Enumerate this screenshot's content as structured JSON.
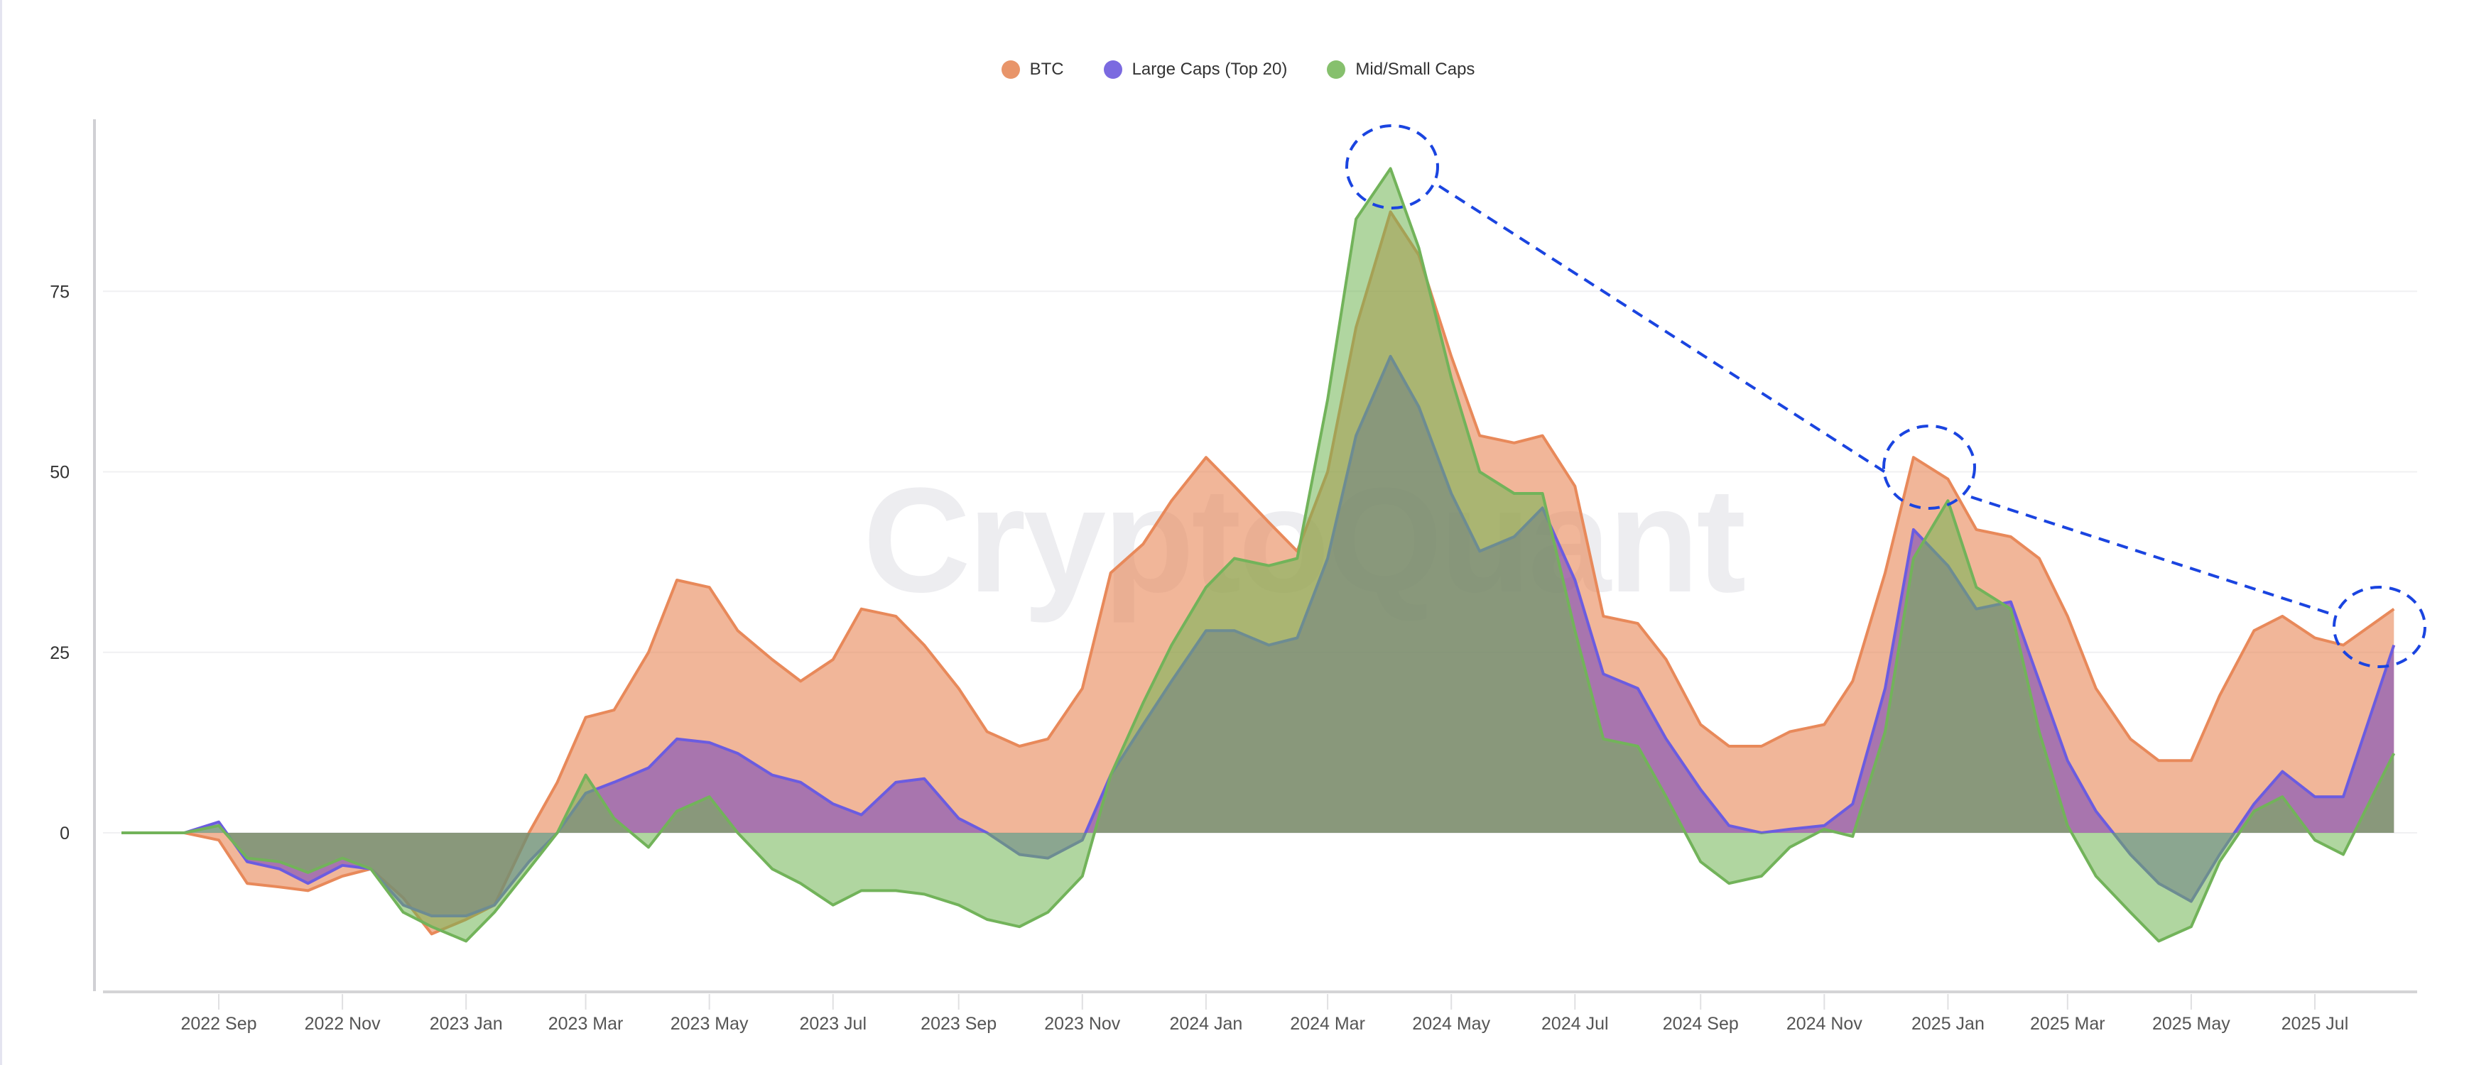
{
  "chart_data": {
    "type": "area",
    "title": "",
    "xlabel": "",
    "ylabel": "",
    "ylim": [
      -22,
      97
    ],
    "yticks": [
      0,
      25,
      50,
      75
    ],
    "grid": true,
    "legend_position": "top-center",
    "watermark": "CryptoQuant",
    "xticks": [
      {
        "date": "2022-09-01",
        "label": "2022 Sep"
      },
      {
        "date": "2022-11-01",
        "label": "2022 Nov"
      },
      {
        "date": "2023-01-01",
        "label": "2023 Jan"
      },
      {
        "date": "2023-03-01",
        "label": "2023 Mar"
      },
      {
        "date": "2023-05-01",
        "label": "2023 May"
      },
      {
        "date": "2023-07-01",
        "label": "2023 Jul"
      },
      {
        "date": "2023-09-01",
        "label": "2023 Sep"
      },
      {
        "date": "2023-11-01",
        "label": "2023 Nov"
      },
      {
        "date": "2024-01-01",
        "label": "2024 Jan"
      },
      {
        "date": "2024-03-01",
        "label": "2024 Mar"
      },
      {
        "date": "2024-05-01",
        "label": "2024 May"
      },
      {
        "date": "2024-07-01",
        "label": "2024 Jul"
      },
      {
        "date": "2024-09-01",
        "label": "2024 Sep"
      },
      {
        "date": "2024-11-01",
        "label": "2024 Nov"
      },
      {
        "date": "2025-01-01",
        "label": "2025 Jan"
      },
      {
        "date": "2025-03-01",
        "label": "2025 Mar"
      },
      {
        "date": "2025-05-01",
        "label": "2025 May"
      },
      {
        "date": "2025-07-01",
        "label": "2025 Jul"
      }
    ],
    "x": [
      "2022-07-15",
      "2022-08-01",
      "2022-08-15",
      "2022-09-01",
      "2022-09-15",
      "2022-10-01",
      "2022-10-15",
      "2022-11-01",
      "2022-11-15",
      "2022-12-01",
      "2022-12-15",
      "2023-01-01",
      "2023-01-15",
      "2023-02-01",
      "2023-02-15",
      "2023-03-01",
      "2023-03-15",
      "2023-04-01",
      "2023-04-15",
      "2023-05-01",
      "2023-05-15",
      "2023-06-01",
      "2023-06-15",
      "2023-07-01",
      "2023-07-15",
      "2023-08-01",
      "2023-08-15",
      "2023-09-01",
      "2023-09-15",
      "2023-10-01",
      "2023-10-15",
      "2023-11-01",
      "2023-11-15",
      "2023-12-01",
      "2023-12-15",
      "2024-01-01",
      "2024-01-15",
      "2024-02-01",
      "2024-02-15",
      "2024-03-01",
      "2024-03-15",
      "2024-04-01",
      "2024-04-15",
      "2024-05-01",
      "2024-05-15",
      "2024-06-01",
      "2024-06-15",
      "2024-07-01",
      "2024-07-15",
      "2024-08-01",
      "2024-08-15",
      "2024-09-01",
      "2024-09-15",
      "2024-10-01",
      "2024-10-15",
      "2024-11-01",
      "2024-11-15",
      "2024-12-01",
      "2024-12-15",
      "2025-01-01",
      "2025-01-15",
      "2025-02-01",
      "2025-02-15",
      "2025-03-01",
      "2025-03-15",
      "2025-04-01",
      "2025-04-15",
      "2025-05-01",
      "2025-05-15",
      "2025-06-01",
      "2025-06-15",
      "2025-07-01",
      "2025-07-15",
      "2025-08-09"
    ],
    "series": [
      {
        "name": "BTC",
        "color": "#e8895a",
        "values": [
          0,
          0,
          0,
          -1,
          -7,
          -7.5,
          -8,
          -6,
          -5,
          -9,
          -14,
          -12,
          -10,
          0,
          7,
          16,
          17,
          25,
          35,
          34,
          28,
          24,
          21,
          24,
          31,
          30,
          26,
          20,
          14,
          12,
          13,
          20,
          36,
          40,
          46,
          52,
          48,
          43,
          39,
          50,
          70,
          86,
          80,
          66,
          55,
          54,
          55,
          48,
          30,
          29,
          24,
          15,
          12,
          12,
          14,
          15,
          21,
          36,
          52,
          49,
          42,
          41,
          38,
          30,
          20,
          13,
          10,
          10,
          19,
          28,
          30,
          27,
          26,
          31
        ]
      },
      {
        "name": "Large Caps (Top 20)",
        "color": "#6b5ce0",
        "values": [
          0,
          0,
          0,
          1.5,
          -4,
          -5,
          -7,
          -4.5,
          -5,
          -10,
          -11.5,
          -11.5,
          -10,
          -4,
          0,
          5.5,
          7,
          9,
          13,
          12.5,
          11,
          8,
          7,
          4,
          2.5,
          7,
          7.5,
          2,
          0,
          -3,
          -3.5,
          -1,
          8,
          15,
          21,
          28,
          28,
          26,
          27,
          38,
          55,
          66,
          59,
          47,
          39,
          41,
          45,
          35,
          22,
          20,
          13,
          6,
          1,
          0,
          0.5,
          1,
          4,
          20,
          42,
          37,
          31,
          32,
          21,
          10,
          3,
          -3,
          -7,
          -9.5,
          -3,
          4,
          8.5,
          5,
          5,
          26
        ]
      },
      {
        "name": "Mid/Small Caps",
        "color": "#72b35a",
        "values": [
          0,
          0,
          0,
          1,
          -3.5,
          -4,
          -5.5,
          -3.5,
          -5,
          -11,
          -13,
          -15,
          -11,
          -5,
          0,
          8,
          2,
          -2,
          3,
          5,
          0,
          -5,
          -7,
          -10,
          -8,
          -8,
          -8.5,
          -10,
          -12,
          -13,
          -11,
          -6,
          8,
          18,
          26,
          34,
          38,
          37,
          38,
          60,
          85,
          92,
          81,
          63,
          50,
          47,
          47,
          28,
          13,
          12,
          5,
          -4,
          -7,
          -6,
          -2,
          0.5,
          -0.5,
          14,
          38,
          46,
          34,
          31,
          14,
          1,
          -6,
          -11,
          -15,
          -13,
          -4,
          3,
          5,
          -1,
          -3,
          11
        ]
      }
    ],
    "annotations": {
      "color": "#1a44e0",
      "highlighted_peaks": [
        "2024-03-24",
        "2024-12-20",
        "2025-08-01"
      ]
    }
  }
}
